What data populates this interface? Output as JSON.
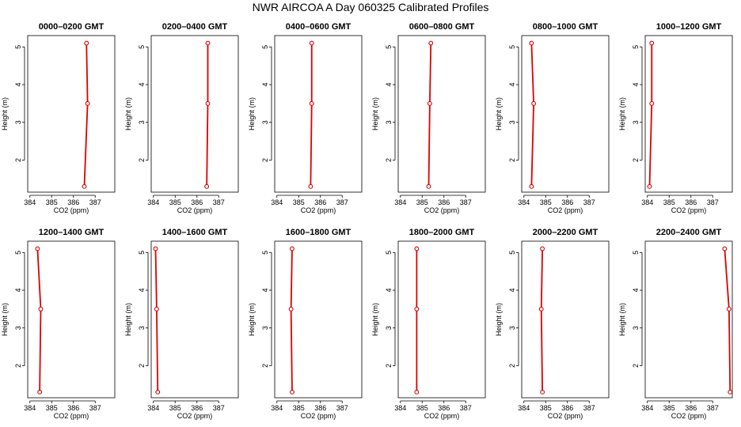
{
  "figure": {
    "title": "NWR AIRCOA A  Day 060325  Calibrated Profiles",
    "colors": {
      "profile": "#dd0000",
      "marker": "#dd0000",
      "axis": "#000000"
    }
  },
  "chart_data": [
    {
      "type": "line",
      "title": "0000–0200 GMT",
      "xlabel": "CO2 (ppm)",
      "ylabel": "Height (m)",
      "xlim": [
        383.9,
        387.9
      ],
      "ylim": [
        1.15,
        5.3
      ],
      "xticks": [
        384,
        385,
        386,
        387
      ],
      "yticks": [
        2,
        3,
        4,
        5
      ],
      "x": [
        386.5,
        386.65,
        386.6
      ],
      "y": [
        1.3,
        3.5,
        5.1
      ]
    },
    {
      "type": "line",
      "title": "0200–0400 GMT",
      "xlabel": "CO2 (ppm)",
      "ylabel": "Height (m)",
      "xlim": [
        383.9,
        387.9
      ],
      "ylim": [
        1.15,
        5.3
      ],
      "xticks": [
        384,
        385,
        386,
        387
      ],
      "yticks": [
        2,
        3,
        4,
        5
      ],
      "x": [
        386.45,
        386.5,
        386.5
      ],
      "y": [
        1.3,
        3.5,
        5.1
      ]
    },
    {
      "type": "line",
      "title": "0400–0600 GMT",
      "xlabel": "CO2 (ppm)",
      "ylabel": "Height (m)",
      "xlim": [
        383.9,
        387.9
      ],
      "ylim": [
        1.15,
        5.3
      ],
      "xticks": [
        384,
        385,
        386,
        387
      ],
      "yticks": [
        2,
        3,
        4,
        5
      ],
      "x": [
        385.55,
        385.6,
        385.6
      ],
      "y": [
        1.3,
        3.5,
        5.1
      ]
    },
    {
      "type": "line",
      "title": "0600–0800 GMT",
      "xlabel": "CO2 (ppm)",
      "ylabel": "Height (m)",
      "xlim": [
        383.9,
        387.9
      ],
      "ylim": [
        1.15,
        5.3
      ],
      "xticks": [
        384,
        385,
        386,
        387
      ],
      "yticks": [
        2,
        3,
        4,
        5
      ],
      "x": [
        385.3,
        385.35,
        385.4
      ],
      "y": [
        1.3,
        3.5,
        5.1
      ]
    },
    {
      "type": "line",
      "title": "0800–1000 GMT",
      "xlabel": "CO2 (ppm)",
      "ylabel": "Height (m)",
      "xlim": [
        383.9,
        387.9
      ],
      "ylim": [
        1.15,
        5.3
      ],
      "xticks": [
        384,
        385,
        386,
        387
      ],
      "yticks": [
        2,
        3,
        4,
        5
      ],
      "x": [
        384.35,
        384.45,
        384.35
      ],
      "y": [
        1.3,
        3.5,
        5.1
      ]
    },
    {
      "type": "line",
      "title": "1000–1200 GMT",
      "xlabel": "CO2 (ppm)",
      "ylabel": "Height (m)",
      "xlim": [
        383.9,
        387.9
      ],
      "ylim": [
        1.15,
        5.3
      ],
      "xticks": [
        384,
        385,
        386,
        387
      ],
      "yticks": [
        2,
        3,
        4,
        5
      ],
      "x": [
        384.1,
        384.2,
        384.2
      ],
      "y": [
        1.3,
        3.5,
        5.1
      ]
    },
    {
      "type": "line",
      "title": "1200–1400 GMT",
      "xlabel": "CO2 (ppm)",
      "ylabel": "Height (m)",
      "xlim": [
        383.9,
        387.9
      ],
      "ylim": [
        1.15,
        5.3
      ],
      "xticks": [
        384,
        385,
        386,
        387
      ],
      "yticks": [
        2,
        3,
        4,
        5
      ],
      "x": [
        384.45,
        384.5,
        384.35
      ],
      "y": [
        1.3,
        3.5,
        5.1
      ]
    },
    {
      "type": "line",
      "title": "1400–1600 GMT",
      "xlabel": "CO2 (ppm)",
      "ylabel": "Height (m)",
      "xlim": [
        383.9,
        387.9
      ],
      "ylim": [
        1.15,
        5.3
      ],
      "xticks": [
        384,
        385,
        386,
        387
      ],
      "yticks": [
        2,
        3,
        4,
        5
      ],
      "x": [
        384.2,
        384.15,
        384.1
      ],
      "y": [
        1.3,
        3.5,
        5.1
      ]
    },
    {
      "type": "line",
      "title": "1600–1800 GMT",
      "xlabel": "CO2 (ppm)",
      "ylabel": "Height (m)",
      "xlim": [
        383.9,
        387.9
      ],
      "ylim": [
        1.15,
        5.3
      ],
      "xticks": [
        384,
        385,
        386,
        387
      ],
      "yticks": [
        2,
        3,
        4,
        5
      ],
      "x": [
        384.7,
        384.65,
        384.7
      ],
      "y": [
        1.3,
        3.5,
        5.1
      ]
    },
    {
      "type": "line",
      "title": "1800–2000 GMT",
      "xlabel": "CO2 (ppm)",
      "ylabel": "Height (m)",
      "xlim": [
        383.9,
        387.9
      ],
      "ylim": [
        1.15,
        5.3
      ],
      "xticks": [
        384,
        385,
        386,
        387
      ],
      "yticks": [
        2,
        3,
        4,
        5
      ],
      "x": [
        384.75,
        384.75,
        384.75
      ],
      "y": [
        1.3,
        3.5,
        5.1
      ]
    },
    {
      "type": "line",
      "title": "2000–2200 GMT",
      "xlabel": "CO2 (ppm)",
      "ylabel": "Height (m)",
      "xlim": [
        383.9,
        387.9
      ],
      "ylim": [
        1.15,
        5.3
      ],
      "xticks": [
        384,
        385,
        386,
        387
      ],
      "yticks": [
        2,
        3,
        4,
        5
      ],
      "x": [
        384.85,
        384.8,
        384.85
      ],
      "y": [
        1.3,
        3.5,
        5.1
      ]
    },
    {
      "type": "line",
      "title": "2200–2400 GMT",
      "xlabel": "CO2 (ppm)",
      "ylabel": "Height (m)",
      "xlim": [
        383.9,
        387.9
      ],
      "ylim": [
        1.15,
        5.3
      ],
      "xticks": [
        384,
        385,
        386,
        387
      ],
      "yticks": [
        2,
        3,
        4,
        5
      ],
      "x": [
        387.8,
        387.75,
        387.55
      ],
      "y": [
        1.3,
        3.5,
        5.1
      ]
    }
  ]
}
